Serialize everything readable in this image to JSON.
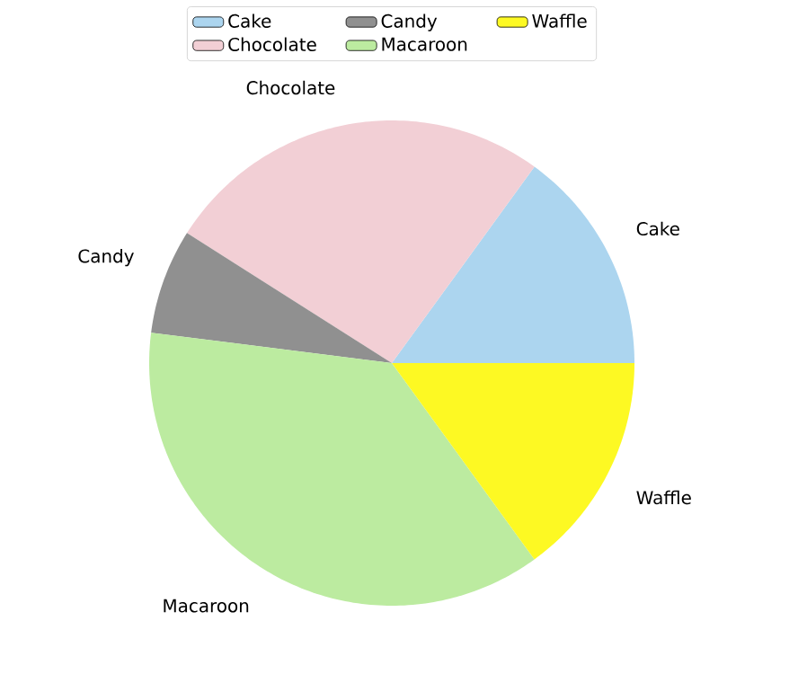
{
  "chart_data": {
    "type": "pie",
    "categories": [
      "Cake",
      "Chocolate",
      "Candy",
      "Macaroon",
      "Waffle"
    ],
    "values": [
      15,
      26,
      7,
      37,
      15
    ],
    "colors": [
      "#acd5ef",
      "#f2cfd5",
      "#909090",
      "#bceba0",
      "#fdf923"
    ],
    "legend": "top"
  }
}
